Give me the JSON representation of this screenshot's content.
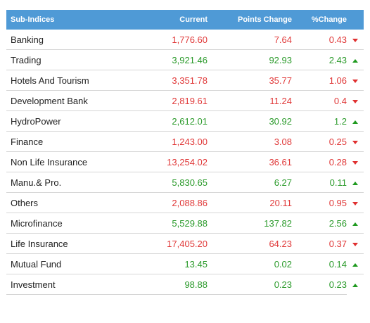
{
  "header": {
    "col_name": "Sub-Indices",
    "col_current": "Current",
    "col_points": "Points Change",
    "col_pct": "%Change"
  },
  "colors": {
    "header_bg": "#4f9ad6",
    "up": "#2a9a2a",
    "down": "#e03838"
  },
  "rows": [
    {
      "name": "Banking",
      "current": "1,776.60",
      "points": "7.64",
      "pct": "0.43",
      "dir": "down"
    },
    {
      "name": "Trading",
      "current": "3,921.46",
      "points": "92.93",
      "pct": "2.43",
      "dir": "up"
    },
    {
      "name": "Hotels And Tourism",
      "current": "3,351.78",
      "points": "35.77",
      "pct": "1.06",
      "dir": "down"
    },
    {
      "name": "Development Bank",
      "current": "2,819.61",
      "points": "11.24",
      "pct": "0.4",
      "dir": "down"
    },
    {
      "name": "HydroPower",
      "current": "2,612.01",
      "points": "30.92",
      "pct": "1.2",
      "dir": "up"
    },
    {
      "name": "Finance",
      "current": "1,243.00",
      "points": "3.08",
      "pct": "0.25",
      "dir": "down"
    },
    {
      "name": "Non Life Insurance",
      "current": "13,254.02",
      "points": "36.61",
      "pct": "0.28",
      "dir": "down"
    },
    {
      "name": "Manu.& Pro.",
      "current": "5,830.65",
      "points": "6.27",
      "pct": "0.11",
      "dir": "up"
    },
    {
      "name": "Others",
      "current": "2,088.86",
      "points": "20.11",
      "pct": "0.95",
      "dir": "down"
    },
    {
      "name": "Microfinance",
      "current": "5,529.88",
      "points": "137.82",
      "pct": "2.56",
      "dir": "up"
    },
    {
      "name": "Life Insurance",
      "current": "17,405.20",
      "points": "64.23",
      "pct": "0.37",
      "dir": "down"
    },
    {
      "name": "Mutual Fund",
      "current": "13.45",
      "points": "0.02",
      "pct": "0.14",
      "dir": "up"
    },
    {
      "name": "Investment",
      "current": "98.88",
      "points": "0.23",
      "pct": "0.23",
      "dir": "up"
    }
  ]
}
